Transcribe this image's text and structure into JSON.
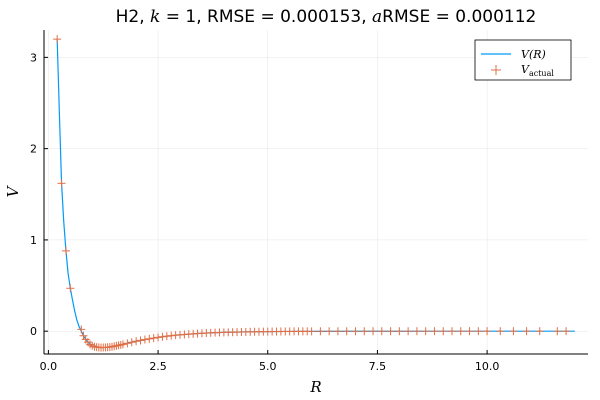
{
  "chart_data": {
    "type": "line",
    "title_parts": [
      {
        "t": "H2, ",
        "math": false
      },
      {
        "t": "k",
        "math": true
      },
      {
        "t": " = 1, RMSE = 0.000153, ",
        "math": false
      },
      {
        "t": "a",
        "math": true
      },
      {
        "t": "RMSE = 0.000112",
        "math": false
      }
    ],
    "xlabel": "R",
    "ylabel": "V",
    "xlim": [
      -0.1,
      12.3
    ],
    "ylim": [
      -0.25,
      3.3
    ],
    "xticks": [
      0,
      2.5,
      5,
      7.5,
      10
    ],
    "xtick_labels": [
      "0.0",
      "2.5",
      "5.0",
      "7.5",
      "10.0"
    ],
    "yticks": [
      0,
      1,
      2,
      3
    ],
    "ytick_labels": [
      "0",
      "1",
      "2",
      "3"
    ],
    "grid": true,
    "legend_position": "top-right",
    "colors": {
      "fit": "#009AFA",
      "actual": "#E26F46"
    },
    "series": [
      {
        "name": "V(R)",
        "kind": "line",
        "x": [
          0.2,
          0.25,
          0.3,
          0.35,
          0.4,
          0.45,
          0.5,
          0.55,
          0.6,
          0.65,
          0.7,
          0.75,
          0.8,
          0.85,
          0.9,
          1.0,
          1.1,
          1.2,
          1.3,
          1.4,
          1.5,
          1.6,
          1.8,
          2.0,
          2.25,
          2.5,
          2.75,
          3.0,
          3.5,
          4.0,
          4.5,
          5.0,
          5.5,
          6.0,
          7.0,
          8.0,
          9.0,
          10.0,
          11.0,
          12.0
        ],
        "y": [
          3.2,
          2.4,
          1.62,
          1.2,
          0.88,
          0.63,
          0.47,
          0.34,
          0.22,
          0.12,
          0.05,
          0.0,
          -0.05,
          -0.09,
          -0.12,
          -0.16,
          -0.175,
          -0.18,
          -0.178,
          -0.174,
          -0.165,
          -0.155,
          -0.133,
          -0.11,
          -0.088,
          -0.068,
          -0.052,
          -0.04,
          -0.023,
          -0.013,
          -0.008,
          -0.005,
          -0.003,
          -0.002,
          -0.001,
          -0.0005,
          -0.0002,
          -0.0001,
          0.0,
          0.0
        ]
      },
      {
        "name": "V_actual",
        "kind": "scatter",
        "x": [
          0.2,
          0.3,
          0.4,
          0.5,
          0.75,
          0.8,
          0.85,
          0.9,
          0.95,
          1.0,
          1.05,
          1.1,
          1.15,
          1.2,
          1.25,
          1.3,
          1.35,
          1.4,
          1.45,
          1.5,
          1.55,
          1.6,
          1.65,
          1.7,
          1.8,
          1.9,
          2.0,
          2.1,
          2.2,
          2.3,
          2.4,
          2.5,
          2.6,
          2.7,
          2.8,
          2.9,
          3.0,
          3.1,
          3.2,
          3.3,
          3.4,
          3.5,
          3.6,
          3.7,
          3.8,
          3.9,
          4.0,
          4.1,
          4.2,
          4.3,
          4.4,
          4.5,
          4.6,
          4.7,
          4.8,
          4.9,
          5.0,
          5.1,
          5.2,
          5.3,
          5.4,
          5.5,
          5.6,
          5.7,
          5.8,
          5.9,
          6.0,
          6.2,
          6.4,
          6.6,
          6.8,
          7.0,
          7.2,
          7.4,
          7.6,
          7.8,
          8.0,
          8.2,
          8.4,
          8.6,
          8.8,
          9.0,
          9.2,
          9.4,
          9.6,
          9.8,
          10.0,
          10.3,
          10.6,
          10.9,
          11.2,
          11.6,
          11.8
        ],
        "y": [
          3.2,
          1.62,
          0.88,
          0.47,
          0.02,
          -0.05,
          -0.09,
          -0.12,
          -0.145,
          -0.16,
          -0.17,
          -0.175,
          -0.178,
          -0.18,
          -0.179,
          -0.178,
          -0.176,
          -0.174,
          -0.17,
          -0.165,
          -0.16,
          -0.155,
          -0.15,
          -0.144,
          -0.133,
          -0.121,
          -0.11,
          -0.101,
          -0.092,
          -0.084,
          -0.076,
          -0.068,
          -0.061,
          -0.055,
          -0.049,
          -0.044,
          -0.04,
          -0.036,
          -0.032,
          -0.029,
          -0.026,
          -0.023,
          -0.02,
          -0.018,
          -0.016,
          -0.014,
          -0.013,
          -0.012,
          -0.011,
          -0.01,
          -0.009,
          -0.008,
          -0.007,
          -0.006,
          -0.006,
          -0.005,
          -0.005,
          -0.004,
          -0.004,
          -0.003,
          -0.003,
          -0.003,
          -0.002,
          -0.002,
          -0.002,
          -0.002,
          -0.002,
          -0.001,
          -0.001,
          -0.001,
          -0.001,
          -0.001,
          -0.001,
          -0.0005,
          -0.0005,
          -0.0005,
          -0.0005,
          -0.0003,
          -0.0003,
          -0.0003,
          -0.0002,
          -0.0002,
          -0.0002,
          -0.0001,
          -0.0001,
          -0.0001,
          -0.0001,
          0.0,
          0.0,
          0.0,
          0.0,
          0.0,
          0.0
        ]
      }
    ],
    "legend": [
      {
        "label_main": "V(R)",
        "label_sub": ""
      },
      {
        "label_main": "V",
        "label_sub": "actual"
      }
    ]
  }
}
